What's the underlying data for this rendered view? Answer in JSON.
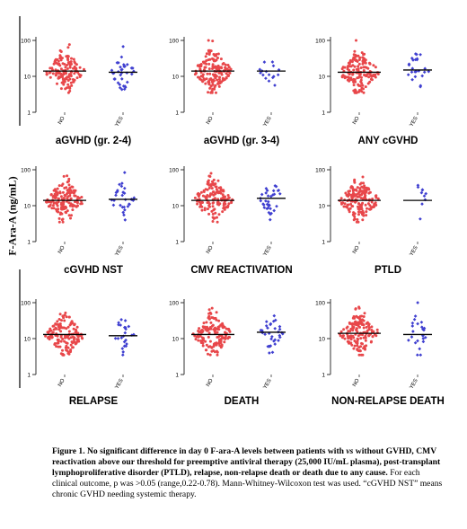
{
  "y_axis_label": "F-Ara-A (ng/mL)",
  "caption": {
    "part1": "Figure 1.  No significant difference in day 0 F-ara-A levels between patients with ",
    "vs": "vs",
    "part2": " without GVHD, CMV reactivation above our threshold for preemptive antiviral therapy (25,000 IU/mL plasma), post-transplant lymphoproliferative disorder (PTLD), relapse, non-relapse death or death due to any cause.",
    "part3": " For each clinical outcome, p was >0.05 (range,0.22-0.78). Mann-Whitney-Wilcoxon test was used. “cGVHD NST” means chronic GVHD needing systemic therapy."
  },
  "colors": {
    "no_group": "#e8474a",
    "yes_group": "#3f3fd0",
    "median_line": "#000000"
  },
  "chart_data": [
    {
      "type": "scatter",
      "title": "aGVHD (gr. 2-4)",
      "scale": "log",
      "ylim": [
        1,
        100
      ],
      "yticks": [
        "1",
        "10",
        "100"
      ],
      "categories": [
        "NO",
        "YES"
      ],
      "medians": [
        14,
        13
      ],
      "approx_n": [
        140,
        34
      ]
    },
    {
      "type": "scatter",
      "title": "aGVHD (gr. 3-4)",
      "scale": "log",
      "ylim": [
        1,
        100
      ],
      "yticks": [
        "1",
        "10",
        "100"
      ],
      "categories": [
        "NO",
        "YES"
      ],
      "medians": [
        14,
        14
      ],
      "approx_n": [
        160,
        16
      ]
    },
    {
      "type": "scatter",
      "title": "ANY cGVHD",
      "scale": "log",
      "ylim": [
        1,
        100
      ],
      "yticks": [
        "1",
        "10",
        "100"
      ],
      "categories": [
        "NO",
        "YES"
      ],
      "medians": [
        13,
        15
      ],
      "approx_n": [
        150,
        24
      ]
    },
    {
      "type": "scatter",
      "title": "cGVHD NST",
      "scale": "log",
      "ylim": [
        1,
        100
      ],
      "yticks": [
        "1",
        "10",
        "100"
      ],
      "categories": [
        "NO",
        "YES"
      ],
      "medians": [
        14,
        15
      ],
      "approx_n": [
        145,
        30
      ]
    },
    {
      "type": "scatter",
      "title": "CMV REACTIVATION",
      "scale": "log",
      "ylim": [
        1,
        100
      ],
      "yticks": [
        "1",
        "10",
        "100"
      ],
      "categories": [
        "NO",
        "YES"
      ],
      "medians": [
        14,
        16
      ],
      "approx_n": [
        140,
        34
      ]
    },
    {
      "type": "scatter",
      "title": "PTLD",
      "scale": "log",
      "ylim": [
        1,
        100
      ],
      "yticks": [
        "1",
        "10",
        "100"
      ],
      "categories": [
        "NO",
        "YES"
      ],
      "medians": [
        14,
        14
      ],
      "approx_n": [
        165,
        10
      ]
    },
    {
      "type": "scatter",
      "title": "RELAPSE",
      "scale": "log",
      "ylim": [
        1,
        100
      ],
      "yticks": [
        "1",
        "10",
        "100"
      ],
      "categories": [
        "NO",
        "YES"
      ],
      "medians": [
        13,
        12
      ],
      "approx_n": [
        150,
        24
      ]
    },
    {
      "type": "scatter",
      "title": "DEATH",
      "scale": "log",
      "ylim": [
        1,
        100
      ],
      "yticks": [
        "1",
        "10",
        "100"
      ],
      "categories": [
        "NO",
        "YES"
      ],
      "medians": [
        13,
        15
      ],
      "approx_n": [
        140,
        34
      ]
    },
    {
      "type": "scatter",
      "title": "NON-RELAPSE DEATH",
      "scale": "log",
      "ylim": [
        1,
        100
      ],
      "yticks": [
        "1",
        "10",
        "100"
      ],
      "categories": [
        "NO",
        "YES"
      ],
      "medians": [
        14,
        13
      ],
      "approx_n": [
        150,
        24
      ]
    }
  ]
}
